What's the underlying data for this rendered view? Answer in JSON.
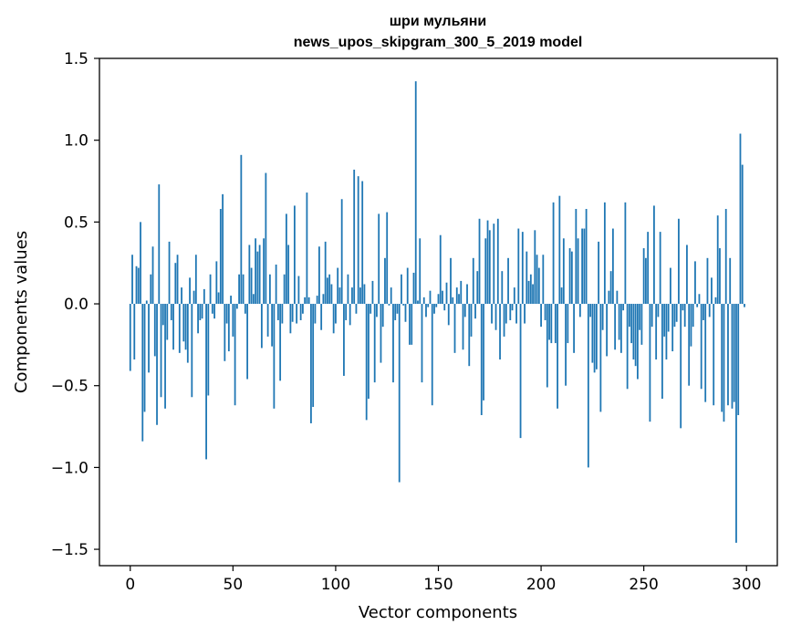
{
  "chart_data": {
    "type": "bar",
    "title_line1": "шри мульяни",
    "title_line2": "news_upos_skipgram_300_5_2019 model",
    "xlabel": "Vector components",
    "ylabel": "Components values",
    "xlim": [
      -15,
      315
    ],
    "ylim": [
      -1.6,
      1.5
    ],
    "xticks": [
      0,
      50,
      100,
      150,
      200,
      250,
      300
    ],
    "xtick_labels": [
      "0",
      "50",
      "100",
      "150",
      "200",
      "250",
      "300"
    ],
    "yticks": [
      1.5,
      1.0,
      0.5,
      0.0,
      -0.5,
      -1.0,
      -1.5
    ],
    "ytick_labels": [
      "1.5",
      "1.0",
      "0.5",
      "0.0",
      "−0.5",
      "−1.0",
      "−1.5"
    ],
    "bar_color": "#1f77b4",
    "values": [
      -0.41,
      0.3,
      -0.34,
      0.23,
      0.22,
      0.5,
      -0.84,
      -0.66,
      0.02,
      -0.42,
      0.18,
      0.35,
      -0.32,
      -0.74,
      0.73,
      -0.57,
      -0.13,
      -0.64,
      -0.22,
      0.38,
      -0.1,
      -0.28,
      0.25,
      0.3,
      -0.3,
      0.1,
      -0.23,
      -0.28,
      -0.36,
      0.16,
      -0.57,
      0.08,
      0.3,
      -0.18,
      -0.1,
      -0.09,
      0.09,
      -0.95,
      -0.56,
      0.18,
      -0.06,
      -0.09,
      0.26,
      0.07,
      0.58,
      0.67,
      -0.35,
      -0.12,
      -0.29,
      0.05,
      -0.2,
      -0.62,
      -0.03,
      0.18,
      0.91,
      0.18,
      -0.06,
      -0.46,
      0.36,
      0.22,
      0.06,
      0.4,
      0.32,
      0.36,
      -0.27,
      0.4,
      0.8,
      -0.2,
      0.18,
      -0.26,
      -0.64,
      0.24,
      -0.1,
      -0.47,
      -0.12,
      0.18,
      0.55,
      0.36,
      -0.18,
      -0.11,
      0.6,
      -0.12,
      0.17,
      -0.1,
      -0.06,
      0.04,
      0.68,
      0.04,
      -0.73,
      -0.63,
      -0.12,
      0.05,
      0.35,
      -0.16,
      0.06,
      0.38,
      0.16,
      0.18,
      0.12,
      -0.18,
      -0.12,
      0.22,
      0.1,
      0.64,
      -0.44,
      -0.1,
      0.18,
      -0.13,
      0.1,
      0.82,
      -0.06,
      0.78,
      0.1,
      0.75,
      0.12,
      -0.71,
      -0.58,
      -0.06,
      0.14,
      -0.48,
      -0.08,
      0.55,
      -0.36,
      -0.14,
      0.28,
      0.56,
      -0.01,
      0.1,
      -0.48,
      -0.1,
      -0.06,
      -1.09,
      0.18,
      -0.01,
      -0.11,
      0.22,
      -0.25,
      -0.25,
      0.19,
      1.36,
      0.02,
      0.4,
      -0.48,
      0.04,
      -0.08,
      -0.02,
      0.08,
      -0.62,
      -0.06,
      -0.02,
      0.06,
      0.42,
      0.08,
      -0.04,
      0.13,
      -0.13,
      0.28,
      0.04,
      -0.3,
      0.1,
      0.06,
      0.14,
      -0.28,
      -0.08,
      0.12,
      -0.38,
      -0.2,
      0.28,
      -0.09,
      0.2,
      0.52,
      -0.68,
      -0.59,
      0.4,
      0.51,
      0.45,
      -0.12,
      0.49,
      -0.16,
      0.52,
      -0.34,
      0.2,
      -0.2,
      -0.12,
      0.28,
      -0.1,
      -0.04,
      0.1,
      -0.12,
      0.46,
      -0.82,
      0.44,
      -0.12,
      0.32,
      0.14,
      0.18,
      0.12,
      0.45,
      0.3,
      0.22,
      -0.14,
      0.3,
      -0.1,
      -0.51,
      -0.22,
      -0.24,
      0.62,
      -0.24,
      -0.64,
      0.66,
      0.1,
      0.4,
      -0.5,
      -0.24,
      0.34,
      0.32,
      -0.3,
      0.58,
      0.4,
      -0.08,
      0.46,
      0.46,
      0.58,
      -1.0,
      -0.08,
      -0.36,
      -0.42,
      -0.4,
      0.38,
      -0.66,
      -0.16,
      0.62,
      -0.32,
      0.08,
      0.2,
      0.46,
      -0.28,
      0.08,
      -0.22,
      -0.3,
      -0.04,
      0.62,
      -0.52,
      -0.14,
      -0.24,
      -0.34,
      -0.38,
      -0.46,
      -0.16,
      -0.25,
      0.34,
      0.28,
      0.44,
      -0.72,
      -0.14,
      0.6,
      -0.34,
      -0.08,
      0.44,
      -0.58,
      -0.2,
      -0.34,
      -0.17,
      0.22,
      -0.29,
      -0.14,
      -0.11,
      0.52,
      -0.76,
      -0.04,
      -0.14,
      0.36,
      -0.5,
      -0.26,
      -0.14,
      0.26,
      -0.02,
      0.06,
      -0.52,
      -0.1,
      -0.6,
      0.28,
      -0.08,
      0.16,
      -0.62,
      0.04,
      0.54,
      0.34,
      -0.66,
      -0.72,
      0.58,
      -0.62,
      0.28,
      -0.64,
      -0.6,
      -1.46,
      -0.68,
      1.04,
      0.85,
      -0.02
    ],
    "bar_count": 300
  }
}
